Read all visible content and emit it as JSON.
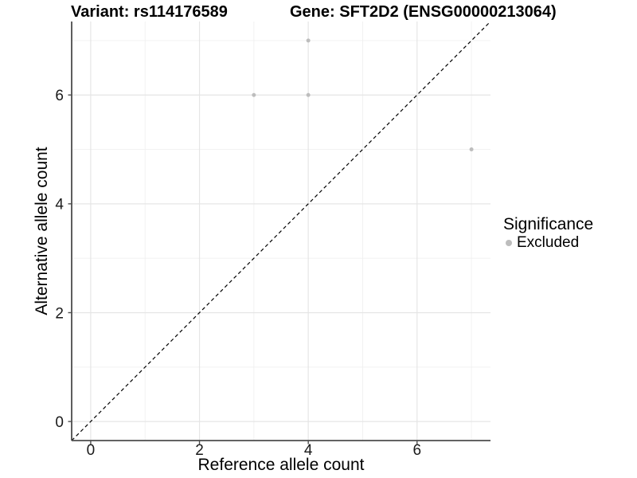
{
  "chart_data": {
    "type": "scatter",
    "title_left": "Variant: rs114176589",
    "title_right": "Gene: SFT2D2 (ENSG00000213064)",
    "xlabel": "Reference allele count",
    "ylabel": "Alternative allele count",
    "xlim": [
      -0.35,
      7.35
    ],
    "ylim": [
      -0.35,
      7.35
    ],
    "x_ticks": [
      0,
      2,
      4,
      6
    ],
    "y_ticks": [
      0,
      2,
      4,
      6
    ],
    "x_minor": [
      1,
      3,
      5,
      7
    ],
    "y_minor": [
      1,
      3,
      5,
      7
    ],
    "grid": true,
    "points": [
      {
        "x": 3,
        "y": 6
      },
      {
        "x": 4,
        "y": 6
      },
      {
        "x": 4,
        "y": 7
      },
      {
        "x": 7,
        "y": 5
      }
    ],
    "identity_line": {
      "style": "dashed",
      "slope": 1,
      "intercept": 0
    },
    "legend": {
      "position": "right",
      "title": "Significance",
      "entries": [
        {
          "label": "Excluded",
          "color": "#bdbdbd",
          "marker": "circle-icon"
        }
      ]
    },
    "colors": {
      "point": "#bdbdbd",
      "grid_major": "#e5e5e5",
      "grid_minor": "#f0f0f0",
      "axis_line": "#4d4d4d",
      "tick_mark": "#4d4d4d",
      "tick_label": "#1a1a1a",
      "dashed_line": "#000000",
      "background": "#ffffff"
    }
  }
}
